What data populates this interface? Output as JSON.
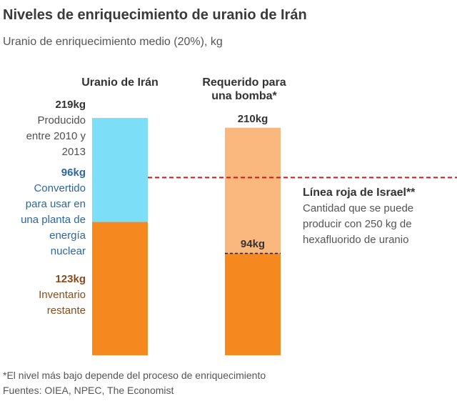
{
  "title": "Niveles de enriquecimiento de uranio de Irán",
  "subtitle": "Uranio de enriquecimiento medio (20%), kg",
  "columns": {
    "iran": "Uranio de Irán",
    "bomb_line1": "Requerido para",
    "bomb_line2": "una bomba*"
  },
  "annotations": {
    "produced_value": "219kg",
    "produced_l1": "Producido",
    "produced_l2": "entre 2010 y",
    "produced_l3": "2013",
    "converted_value": "96kg",
    "converted_l1": "Convertido",
    "converted_l2": "para usar en",
    "converted_l3": "una planta de",
    "converted_l4": "energía",
    "converted_l5": "nuclear",
    "inventory_value": "123kg",
    "inventory_l1": "Inventario",
    "inventory_l2": "restante",
    "bomb_total": "210kg",
    "bomb_min": "94kg"
  },
  "red_line": {
    "heading": "Línea roja de Israel**",
    "l1": "Cantidad que se puede",
    "l2": "producir con 250 kg de",
    "l3": "hexafluorido de uranio"
  },
  "footnote": {
    "l1": "*El nivel más bajo depende del proceso de enriquecimiento",
    "l2": "Fuentes: OIEA, NPEC, The Economist"
  },
  "colors": {
    "light_blue": "#7ddff7",
    "orange": "#f5891f",
    "light_orange": "#fbb87e",
    "red": "#d0171a"
  },
  "chart_data": {
    "type": "bar",
    "stacked": true,
    "categories": [
      "Uranio de Irán",
      "Requerido para una bomba*"
    ],
    "ylim": [
      0,
      219
    ],
    "series": [
      {
        "name": "Inventario restante",
        "values": [
          123,
          null
        ],
        "color": "#f5891f"
      },
      {
        "name": "Convertido para usar en una planta de energía nuclear",
        "values": [
          96,
          null
        ],
        "color": "#7ddff7"
      },
      {
        "values": [
          null,
          94
        ],
        "color": "#f5891f"
      },
      {
        "values": [
          null,
          116
        ],
        "color": "#fbb87e"
      }
    ],
    "annotations": [
      {
        "label": "94kg",
        "category": "Requerido para una bomba*",
        "y": 94,
        "style": "black-dashed"
      },
      {
        "label": "Línea roja de Israel**",
        "y": 164,
        "style": "red-dashed"
      }
    ]
  }
}
